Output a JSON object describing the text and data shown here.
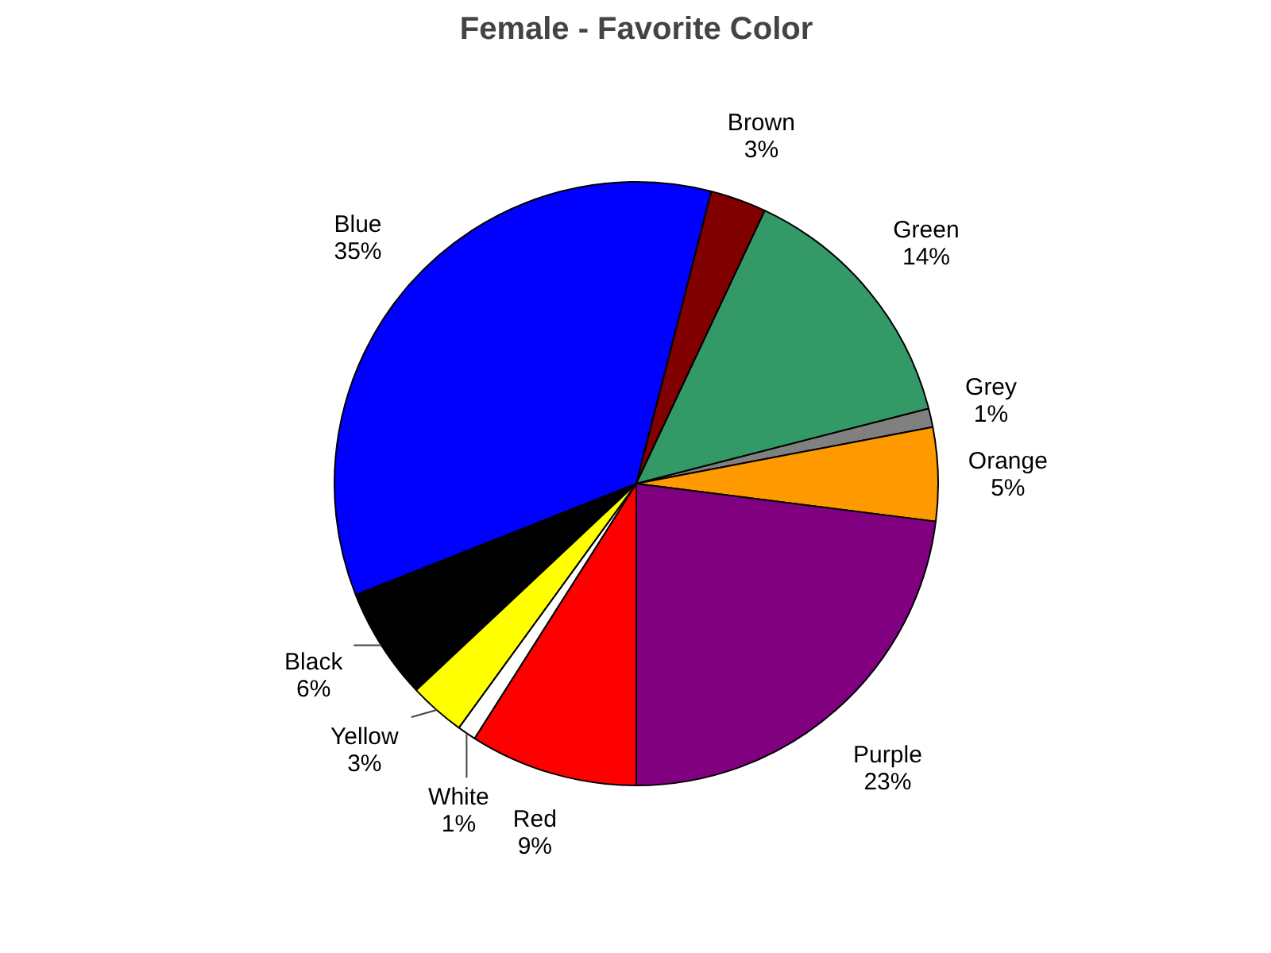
{
  "chart_data": {
    "type": "pie",
    "title": "Female - Favorite Color",
    "categories": [
      "Black",
      "Blue",
      "Brown",
      "Green",
      "Grey",
      "Orange",
      "Purple",
      "Red",
      "White",
      "Yellow"
    ],
    "values": [
      6,
      35,
      3,
      14,
      1,
      5,
      23,
      9,
      1,
      3
    ],
    "colors": [
      "#000000",
      "#0000ff",
      "#800000",
      "#339966",
      "#808080",
      "#ff9900",
      "#800080",
      "#ff0000",
      "#ffffff",
      "#ffff00"
    ],
    "value_labels": [
      "6%",
      "35%",
      "3%",
      "14%",
      "1%",
      "5%",
      "23%",
      "9%",
      "1%",
      "3%"
    ]
  }
}
